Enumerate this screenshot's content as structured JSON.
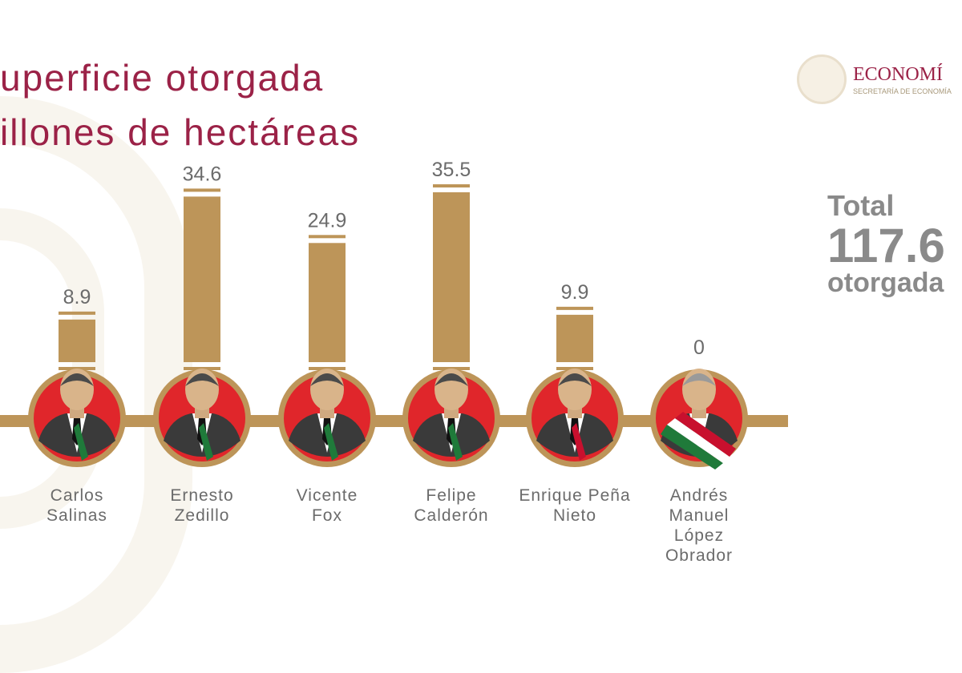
{
  "title_lines": [
    "uperficie otorgada",
    "illones de hectáreas"
  ],
  "logo": {
    "name": "ECONOMÍ",
    "subtitle": "SECRETARÍA DE ECONOMÍA"
  },
  "total": {
    "label": "Total",
    "value": "117.6",
    "suffix": "otorgada"
  },
  "colors": {
    "bar": "#bd9559",
    "title": "#9b2247",
    "portrait_bg": "#e0262b",
    "text": "#6b6b6b"
  },
  "chart_data": {
    "type": "bar",
    "categories": [
      "Carlos Salinas",
      "Ernesto Zedillo",
      "Vicente Fox",
      "Felipe Calderón",
      "Enrique Peña Nieto",
      "Andrés Manuel López Obrador"
    ],
    "category_lines": [
      [
        "Carlos",
        "Salinas"
      ],
      [
        "Ernesto",
        "Zedillo"
      ],
      [
        "Vicente",
        "Fox"
      ],
      [
        "Felipe",
        "Calderón"
      ],
      [
        "Enrique Peña",
        "Nieto"
      ],
      [
        "Andrés",
        "Manuel",
        "López",
        "Obrador"
      ]
    ],
    "values": [
      8.9,
      34.6,
      24.9,
      35.5,
      9.9,
      0
    ],
    "data_labels": [
      "8.9",
      "34.6",
      "24.9",
      "35.5",
      "9.9",
      "0"
    ],
    "ylim": [
      0,
      36
    ],
    "grid": false
  }
}
